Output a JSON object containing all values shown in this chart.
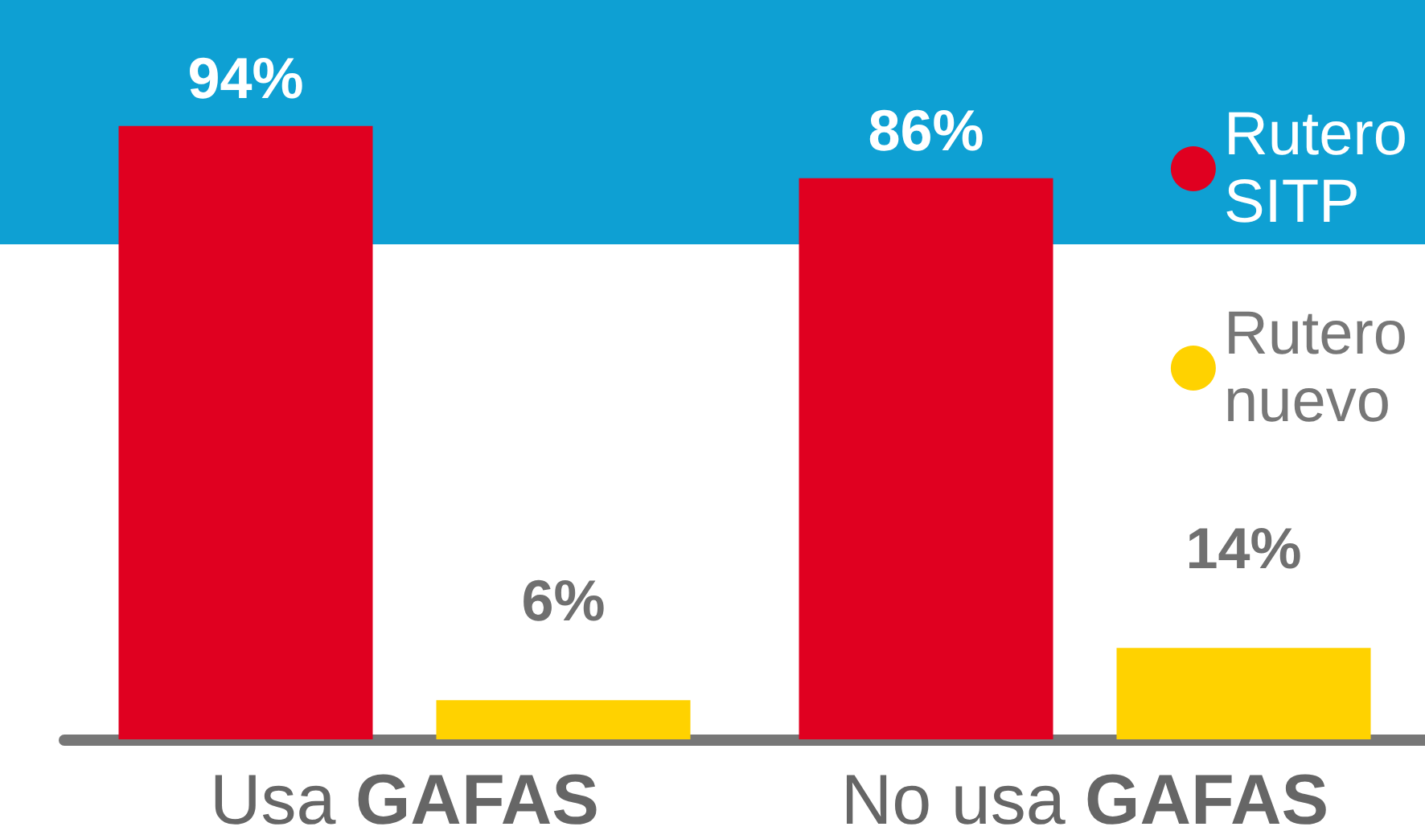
{
  "chart_data": {
    "type": "bar",
    "categories": [
      "Usa GAFAS",
      "No usa GAFAS"
    ],
    "series": [
      {
        "name": "Rutero SITP",
        "color": "#e00020",
        "values": [
          94,
          86
        ],
        "value_labels": [
          "94%",
          "86%"
        ]
      },
      {
        "name": "Rutero nuevo",
        "color": "#ffd200",
        "values": [
          6,
          14
        ],
        "value_labels": [
          "6%",
          "14%"
        ]
      }
    ],
    "legend": "right",
    "grid": false
  }
}
